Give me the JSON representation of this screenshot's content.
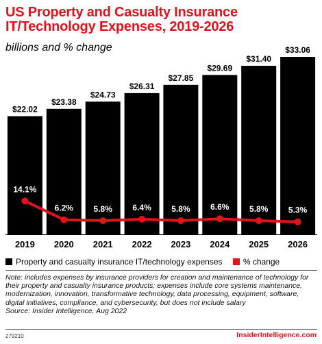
{
  "title": "US Property and Casualty Insurance IT/Technology Expenses, 2019-2026",
  "subtitle": "billions and % change",
  "colors": {
    "bar": "#000000",
    "line": "#e1131b",
    "title": "#e1131b"
  },
  "chart_data": {
    "type": "bar",
    "title": "US Property and Casualty Insurance IT/Technology Expenses, 2019-2026",
    "subtitle": "billions and % change",
    "categories": [
      "2019",
      "2020",
      "2021",
      "2022",
      "2023",
      "2024",
      "2025",
      "2026"
    ],
    "series": [
      {
        "name": "Property and casualty insurance IT/technology expenses",
        "type": "bar",
        "values": [
          22.02,
          23.38,
          24.73,
          26.31,
          27.85,
          29.69,
          31.4,
          33.06
        ],
        "labels": [
          "$22.02",
          "$23.38",
          "$24.73",
          "$26.31",
          "$27.85",
          "$29.69",
          "$31.40",
          "$33.06"
        ]
      },
      {
        "name": "% change",
        "type": "line",
        "values": [
          14.1,
          6.2,
          5.8,
          6.4,
          5.8,
          6.6,
          5.8,
          5.3
        ],
        "labels": [
          "14.1%",
          "6.2%",
          "5.8%",
          "6.4%",
          "5.8%",
          "6.6%",
          "5.8%",
          "5.3%"
        ]
      }
    ],
    "legend_position": "bottom-left",
    "grid": false
  },
  "legend": {
    "bar_label": "Property and casualty insurance IT/technology expenses",
    "line_label": "% change"
  },
  "note": "Note: includes expenses by insurance providers for creation and maintenance of technology for their property and casualty insurance products; expenses include core systems maintenance, modernization, innovation, transformative technology, data processing, equipment, software, digital initiatives, compliance, and cybersecurity, but does not include salary",
  "source": "Source: Insider Intelligence, Aug 2022",
  "footer": {
    "id": "279210",
    "brand": "InsiderIntelligence.com"
  }
}
